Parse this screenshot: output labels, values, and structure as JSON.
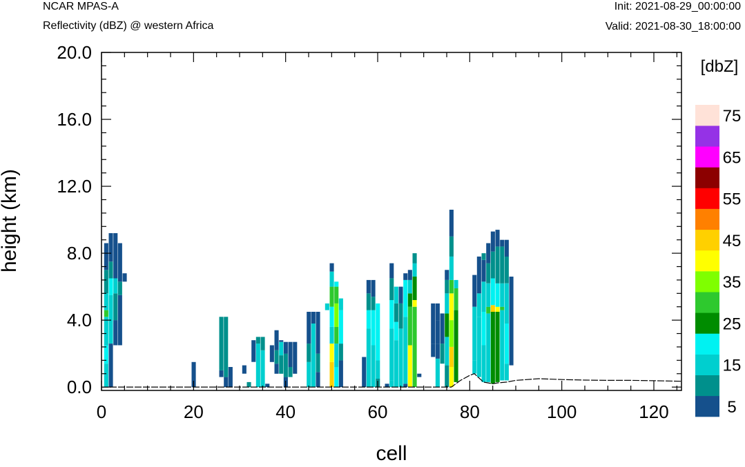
{
  "header": {
    "left_title": "NCAR MPAS-A",
    "left_subtitle": "Reflectivity (dBZ) @ western Africa",
    "init_label": "Init: 2021-08-29_00:00:00",
    "valid_label": "Valid: 2021-08-30_18:00:00"
  },
  "chart_data": {
    "type": "heatmap",
    "xlabel": "cell",
    "ylabel": "height (km)",
    "xlim": [
      0,
      126
    ],
    "ylim": [
      -0.2,
      20.0
    ],
    "x_ticks": [
      "0",
      "20",
      "40",
      "60",
      "80",
      "100",
      "120"
    ],
    "y_ticks": [
      "0.0",
      "4.0",
      "8.0",
      "12.0",
      "16.0",
      "20.0"
    ],
    "colorbar": {
      "title": "[dbZ]",
      "labels": [
        "5",
        "15",
        "25",
        "35",
        "45",
        "55",
        "65",
        "75"
      ],
      "levels": [
        5,
        10,
        15,
        20,
        25,
        30,
        35,
        40,
        45,
        50,
        55,
        60,
        65,
        70,
        75
      ],
      "colors": [
        "#15508c",
        "#00908c",
        "#00cfcf",
        "#00f2f2",
        "#008c00",
        "#2ec92e",
        "#7fff00",
        "#ffff00",
        "#ffd000",
        "#ff8000",
        "#ff0000",
        "#8c0000",
        "#ff00ff",
        "#9532e6",
        "#ffe2d8"
      ]
    },
    "terrain": [
      [
        0,
        0
      ],
      [
        76,
        0
      ],
      [
        78,
        0.4
      ],
      [
        80,
        0.7
      ],
      [
        81,
        0.8
      ],
      [
        83,
        0.3
      ],
      [
        85,
        0.2
      ],
      [
        86,
        0.25
      ],
      [
        88,
        0.3
      ],
      [
        90,
        0.4
      ],
      [
        95,
        0.5
      ],
      [
        100,
        0.45
      ],
      [
        105,
        0.42
      ],
      [
        110,
        0.4
      ],
      [
        115,
        0.4
      ],
      [
        120,
        0.38
      ],
      [
        126,
        0.35
      ]
    ],
    "columns": [
      {
        "x": 1,
        "segments": [
          [
            0,
            1.4,
            15
          ],
          [
            1.4,
            2.5,
            20
          ],
          [
            2.5,
            4.2,
            15
          ],
          [
            4.2,
            4.6,
            30
          ],
          [
            4.6,
            5.6,
            15
          ],
          [
            5.6,
            7.0,
            10
          ],
          [
            7.0,
            8.6,
            5
          ]
        ]
      },
      {
        "x": 2,
        "segments": [
          [
            0,
            2.6,
            5
          ],
          [
            2.6,
            5.5,
            15
          ],
          [
            5.5,
            6.5,
            20
          ],
          [
            6.5,
            7.5,
            10
          ],
          [
            7.5,
            9.2,
            5
          ]
        ]
      },
      {
        "x": 3,
        "segments": [
          [
            2.5,
            4.0,
            5
          ],
          [
            4.0,
            5.6,
            10
          ],
          [
            5.6,
            6.5,
            15
          ],
          [
            6.5,
            9.2,
            5
          ]
        ]
      },
      {
        "x": 4,
        "segments": [
          [
            2.5,
            5.5,
            5
          ],
          [
            5.5,
            6.3,
            10
          ],
          [
            6.3,
            8.6,
            5
          ]
        ]
      },
      {
        "x": 5,
        "segments": [
          [
            6.3,
            6.8,
            5
          ]
        ]
      },
      {
        "x": 20,
        "segments": [
          [
            0,
            1.5,
            5
          ]
        ]
      },
      {
        "x": 26,
        "segments": [
          [
            0.6,
            1.0,
            5
          ],
          [
            1.0,
            4.2,
            10
          ]
        ]
      },
      {
        "x": 27,
        "segments": [
          [
            0,
            0.6,
            5
          ],
          [
            0.6,
            4.2,
            10
          ]
        ]
      },
      {
        "x": 28,
        "segments": [
          [
            0,
            1.2,
            5
          ]
        ]
      },
      {
        "x": 31,
        "segments": [
          [
            0.8,
            1.3,
            5
          ]
        ]
      },
      {
        "x": 32,
        "segments": [
          [
            0,
            0.3,
            10
          ]
        ]
      },
      {
        "x": 33,
        "segments": [
          [
            1.5,
            2.8,
            5
          ]
        ]
      },
      {
        "x": 34,
        "segments": [
          [
            0,
            2.6,
            15
          ],
          [
            2.6,
            3.0,
            10
          ]
        ]
      },
      {
        "x": 35,
        "segments": [
          [
            0,
            2.2,
            15
          ],
          [
            2.2,
            3.0,
            10
          ]
        ]
      },
      {
        "x": 36,
        "segments": [
          [
            0,
            0.2,
            5
          ]
        ]
      },
      {
        "x": 37,
        "segments": [
          [
            1.5,
            2.5,
            5
          ]
        ]
      },
      {
        "x": 38,
        "segments": [
          [
            0.8,
            1.4,
            5
          ],
          [
            1.4,
            2.2,
            10
          ],
          [
            2.2,
            3.4,
            5
          ]
        ]
      },
      {
        "x": 39,
        "segments": [
          [
            0.8,
            1.9,
            10
          ],
          [
            1.9,
            2.7,
            15
          ],
          [
            2.7,
            2.8,
            5
          ]
        ]
      },
      {
        "x": 40,
        "segments": [
          [
            0,
            0.6,
            5
          ],
          [
            0.6,
            2.0,
            10
          ],
          [
            2.0,
            2.7,
            5
          ]
        ]
      },
      {
        "x": 41,
        "segments": [
          [
            0.6,
            1.2,
            10
          ],
          [
            1.2,
            2.7,
            5
          ]
        ]
      },
      {
        "x": 42,
        "segments": [
          [
            0.8,
            2.7,
            5
          ]
        ]
      },
      {
        "x": 45,
        "segments": [
          [
            0,
            1.5,
            15
          ],
          [
            1.5,
            2.6,
            10
          ],
          [
            2.6,
            4.5,
            5
          ]
        ]
      },
      {
        "x": 46,
        "segments": [
          [
            0,
            3.8,
            15
          ],
          [
            3.8,
            4.5,
            5
          ]
        ]
      },
      {
        "x": 47,
        "segments": [
          [
            0,
            0.9,
            5
          ],
          [
            0.9,
            2.0,
            10
          ],
          [
            2.0,
            4.5,
            5
          ]
        ]
      },
      {
        "x": 49,
        "segments": [
          [
            4.6,
            5.0,
            15
          ]
        ]
      },
      {
        "x": 50,
        "segments": [
          [
            0,
            1.5,
            45
          ],
          [
            1.5,
            2.6,
            40
          ],
          [
            2.6,
            3.6,
            15
          ],
          [
            3.6,
            4.8,
            20
          ],
          [
            4.8,
            6.0,
            30
          ],
          [
            6.0,
            6.9,
            15
          ],
          [
            6.9,
            7.4,
            5
          ]
        ]
      },
      {
        "x": 51,
        "segments": [
          [
            0,
            1.2,
            20
          ],
          [
            1.2,
            2.6,
            15
          ],
          [
            2.6,
            3.6,
            30
          ],
          [
            3.6,
            5.0,
            35
          ],
          [
            5.0,
            6.0,
            30
          ],
          [
            6.0,
            6.3,
            20
          ]
        ]
      },
      {
        "x": 52,
        "segments": [
          [
            0,
            1.6,
            5
          ],
          [
            1.6,
            2.6,
            10
          ],
          [
            2.6,
            4.6,
            20
          ],
          [
            4.6,
            5.3,
            15
          ]
        ]
      },
      {
        "x": 57,
        "segments": [
          [
            0,
            1.8,
            5
          ]
        ]
      },
      {
        "x": 58,
        "segments": [
          [
            0,
            3.5,
            15
          ],
          [
            3.5,
            4.6,
            20
          ],
          [
            4.6,
            5.6,
            10
          ],
          [
            5.6,
            6.4,
            5
          ]
        ]
      },
      {
        "x": 59,
        "segments": [
          [
            0,
            2.5,
            15
          ],
          [
            2.5,
            4.6,
            20
          ],
          [
            4.6,
            5.4,
            10
          ],
          [
            5.4,
            6.4,
            5
          ]
        ]
      },
      {
        "x": 60,
        "segments": [
          [
            0,
            0.5,
            10
          ],
          [
            0.5,
            1.6,
            15
          ],
          [
            1.6,
            5.0,
            20
          ]
        ]
      },
      {
        "x": 62,
        "segments": [
          [
            0,
            0.2,
            5
          ]
        ]
      },
      {
        "x": 63,
        "segments": [
          [
            0,
            0.4,
            15
          ],
          [
            0.4,
            3.5,
            15
          ],
          [
            3.5,
            5.2,
            20
          ],
          [
            5.2,
            6.5,
            10
          ],
          [
            6.5,
            7.4,
            5
          ]
        ]
      },
      {
        "x": 64,
        "segments": [
          [
            0,
            2.8,
            15
          ],
          [
            2.8,
            3.9,
            20
          ],
          [
            3.9,
            5.0,
            10
          ],
          [
            5.0,
            6.0,
            15
          ]
        ]
      },
      {
        "x": 65,
        "segments": [
          [
            0,
            0.5,
            15
          ],
          [
            0.5,
            3.5,
            15
          ],
          [
            3.5,
            5.0,
            10
          ],
          [
            5.0,
            6.0,
            5
          ]
        ]
      },
      {
        "x": 66,
        "segments": [
          [
            0,
            0.2,
            5
          ],
          [
            0.2,
            4.2,
            15
          ],
          [
            4.2,
            6.4,
            20
          ],
          [
            6.4,
            6.8,
            5
          ]
        ]
      },
      {
        "x": 67,
        "segments": [
          [
            0,
            2.5,
            40
          ],
          [
            2.5,
            3.8,
            30
          ],
          [
            3.8,
            4.8,
            30
          ],
          [
            4.8,
            5.6,
            25
          ],
          [
            5.6,
            6.4,
            15
          ],
          [
            6.4,
            7.0,
            5
          ]
        ]
      },
      {
        "x": 68,
        "segments": [
          [
            0,
            2.5,
            30
          ],
          [
            2.5,
            3.8,
            30
          ],
          [
            3.8,
            4.8,
            30
          ],
          [
            4.8,
            5.2,
            40
          ],
          [
            5.2,
            6.6,
            25
          ],
          [
            6.6,
            7.4,
            15
          ],
          [
            7.4,
            8.0,
            10
          ]
        ]
      },
      {
        "x": 69,
        "segments": [
          [
            0.6,
            0.8,
            5
          ]
        ]
      },
      {
        "x": 72,
        "segments": [
          [
            1.8,
            2.6,
            5
          ],
          [
            2.6,
            3.8,
            5
          ],
          [
            3.8,
            5.0,
            5
          ]
        ]
      },
      {
        "x": 73,
        "segments": [
          [
            0,
            1.7,
            15
          ],
          [
            1.7,
            2.6,
            5
          ],
          [
            2.6,
            4.0,
            5
          ],
          [
            4.0,
            5.0,
            5
          ]
        ]
      },
      {
        "x": 74,
        "segments": [
          [
            1.4,
            2.6,
            10
          ],
          [
            2.6,
            4.4,
            5
          ]
        ]
      },
      {
        "x": 75,
        "segments": [
          [
            0,
            1.3,
            10
          ],
          [
            1.3,
            3.0,
            15
          ],
          [
            3.0,
            4.4,
            25
          ],
          [
            4.4,
            5.6,
            15
          ],
          [
            5.6,
            6.4,
            10
          ],
          [
            6.4,
            7.0,
            5
          ]
        ]
      },
      {
        "x": 76,
        "segments": [
          [
            0,
            1.2,
            40
          ],
          [
            1.2,
            2.4,
            45
          ],
          [
            2.4,
            4.0,
            35
          ],
          [
            4.0,
            5.6,
            40
          ],
          [
            5.6,
            6.4,
            30
          ],
          [
            6.4,
            7.8,
            15
          ],
          [
            7.8,
            9.0,
            10
          ],
          [
            9.0,
            10.6,
            5
          ]
        ]
      },
      {
        "x": 77,
        "segments": [
          [
            0.3,
            1.8,
            25
          ],
          [
            1.8,
            4.6,
            25
          ],
          [
            4.6,
            5.9,
            30
          ],
          [
            5.9,
            6.4,
            15
          ]
        ]
      },
      {
        "x": 81,
        "segments": [
          [
            0.8,
            1.6,
            15
          ],
          [
            1.6,
            4.8,
            15
          ],
          [
            4.8,
            6.7,
            5
          ]
        ]
      },
      {
        "x": 82,
        "segments": [
          [
            0.6,
            4.2,
            15
          ],
          [
            4.2,
            5.6,
            15
          ],
          [
            5.6,
            7.8,
            5
          ]
        ]
      },
      {
        "x": 83,
        "segments": [
          [
            0.3,
            2.5,
            15
          ],
          [
            2.5,
            4.5,
            20
          ],
          [
            4.5,
            6.3,
            15
          ],
          [
            6.3,
            7.6,
            5
          ],
          [
            7.6,
            8.0,
            10
          ]
        ]
      },
      {
        "x": 84,
        "segments": [
          [
            0.3,
            4.4,
            15
          ],
          [
            4.4,
            4.8,
            30
          ],
          [
            4.8,
            6.2,
            15
          ],
          [
            6.2,
            7.4,
            10
          ],
          [
            7.4,
            8.6,
            5
          ]
        ]
      },
      {
        "x": 85,
        "segments": [
          [
            0.2,
            4.5,
            25
          ],
          [
            4.5,
            4.9,
            45
          ],
          [
            4.9,
            6.5,
            20
          ],
          [
            6.5,
            8.1,
            10
          ],
          [
            8.1,
            9.3,
            5
          ]
        ]
      },
      {
        "x": 86,
        "segments": [
          [
            0.3,
            4.5,
            25
          ],
          [
            4.5,
            4.8,
            40
          ],
          [
            4.8,
            6.2,
            20
          ],
          [
            6.2,
            8.4,
            10
          ],
          [
            8.4,
            9.4,
            5
          ]
        ]
      },
      {
        "x": 87,
        "segments": [
          [
            0.4,
            4.6,
            15
          ],
          [
            4.6,
            4.8,
            30
          ],
          [
            4.8,
            6.2,
            15
          ],
          [
            6.2,
            8.4,
            10
          ],
          [
            8.4,
            8.8,
            5
          ]
        ]
      },
      {
        "x": 88,
        "segments": [
          [
            0.4,
            1.4,
            15
          ],
          [
            1.4,
            3.8,
            20
          ],
          [
            3.8,
            6.2,
            15
          ],
          [
            6.2,
            7.8,
            10
          ],
          [
            7.8,
            8.8,
            5
          ]
        ]
      },
      {
        "x": 89,
        "segments": [
          [
            1.3,
            6.6,
            5
          ]
        ]
      }
    ]
  }
}
